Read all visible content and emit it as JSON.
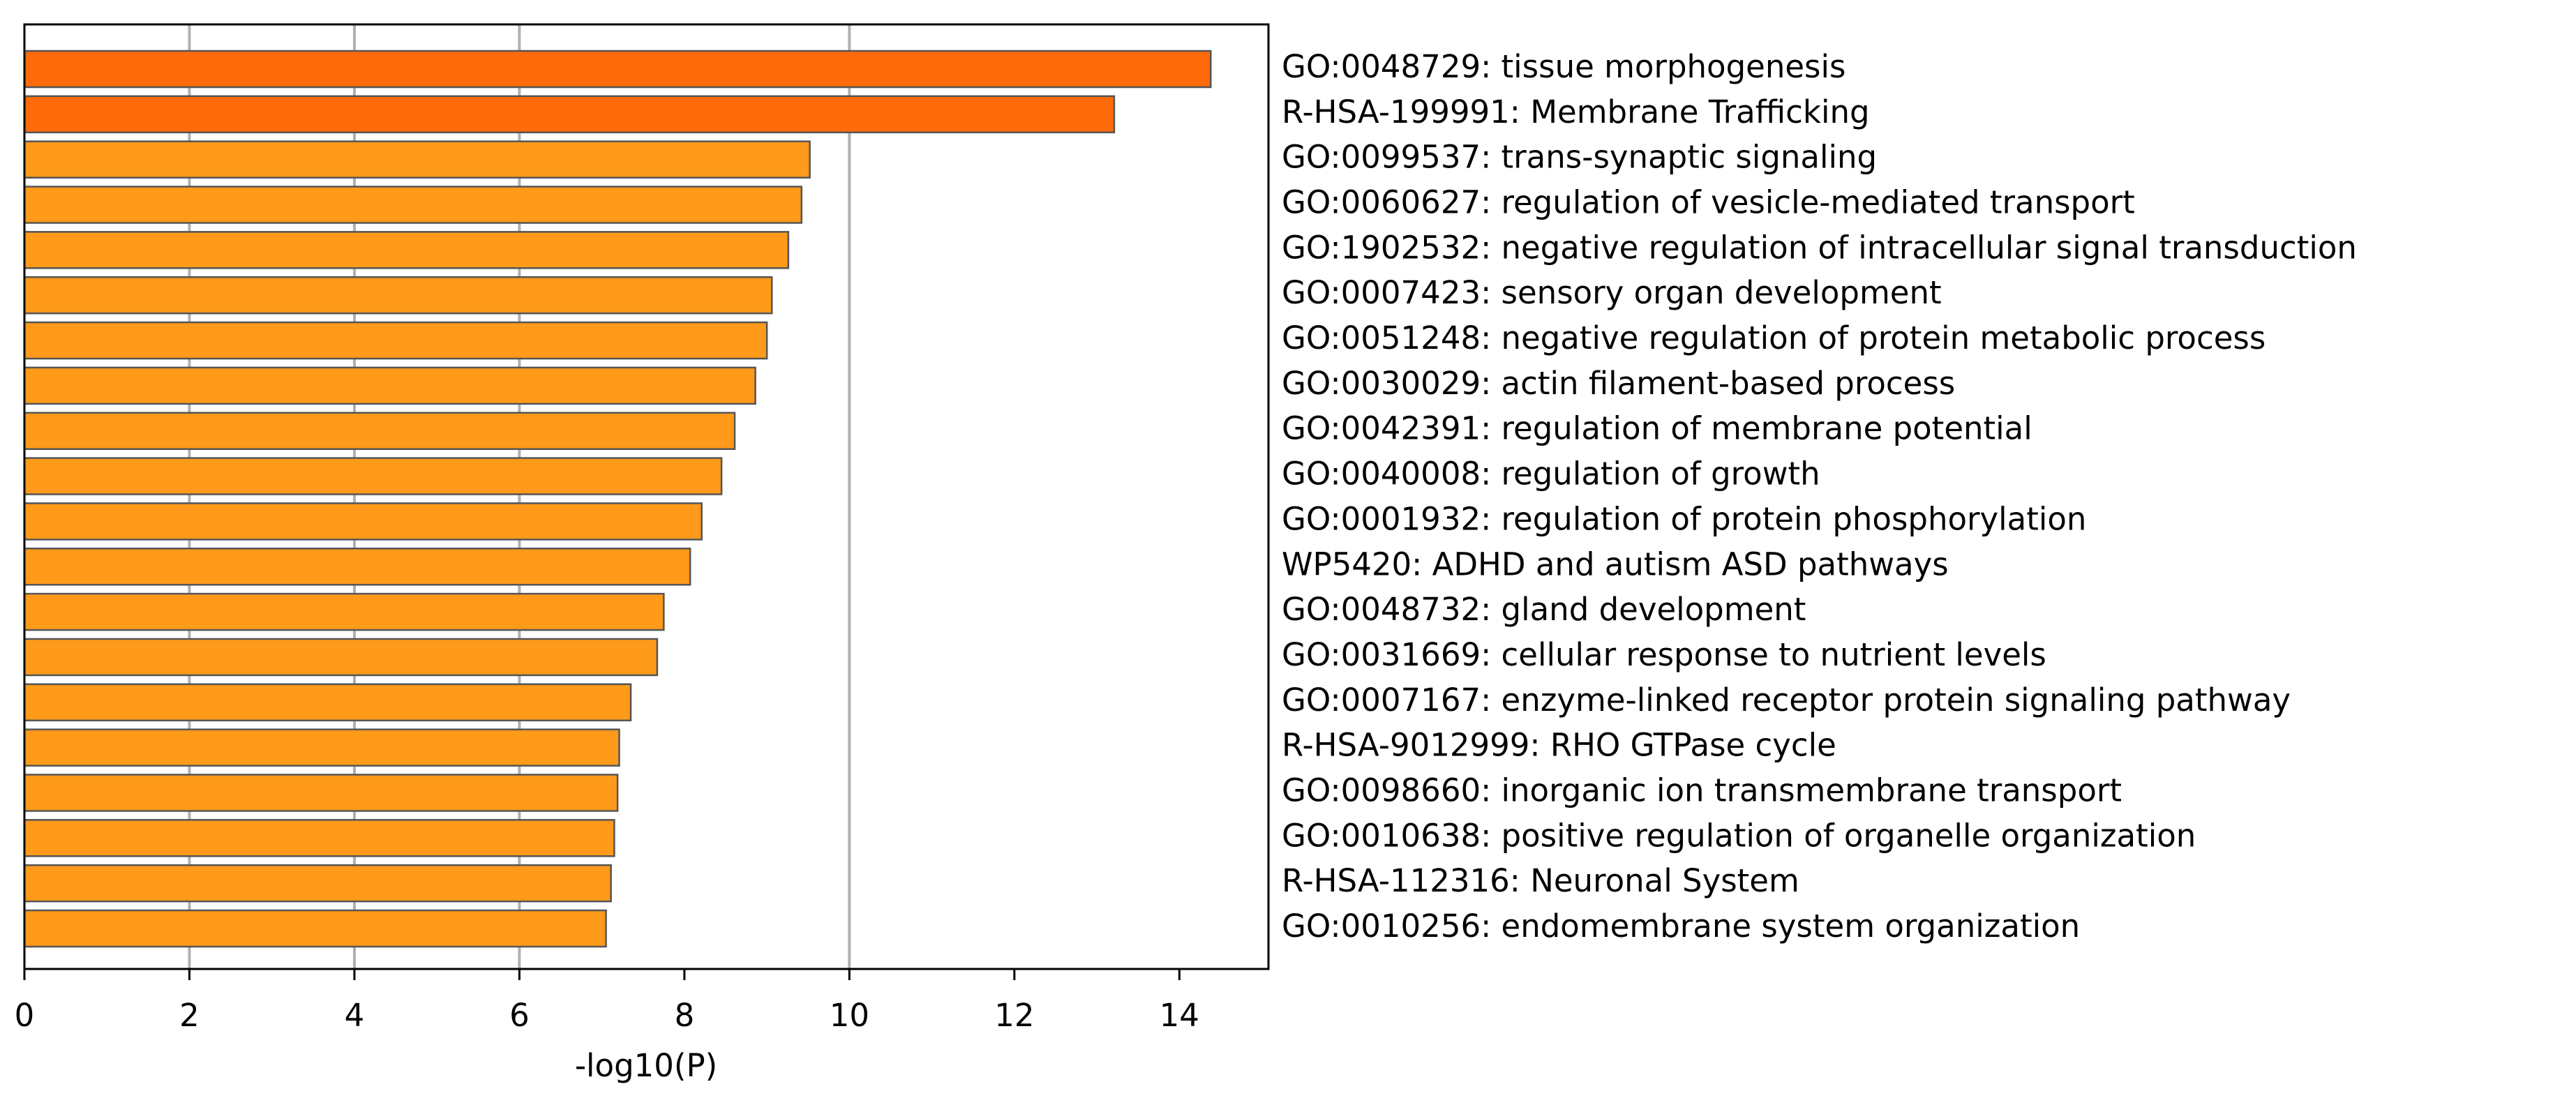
{
  "chart_data": {
    "type": "barh",
    "xlabel": "-log10(P)",
    "categories": [
      "GO:0048729: tissue morphogenesis",
      "R-HSA-199991: Membrane Trafficking",
      "GO:0099537: trans-synaptic signaling",
      "GO:0060627: regulation of vesicle-mediated transport",
      "GO:1902532: negative regulation of intracellular signal transduction",
      "GO:0007423: sensory organ development",
      "GO:0051248: negative regulation of protein metabolic process",
      "GO:0030029: actin filament-based process",
      "GO:0042391: regulation of membrane potential",
      "GO:0040008: regulation of growth",
      "GO:0001932: regulation of protein phosphorylation",
      "WP5420: ADHD and autism ASD pathways",
      "GO:0048732: gland development",
      "GO:0031669: cellular response to nutrient levels",
      "GO:0007167: enzyme-linked receptor protein signaling pathway",
      "R-HSA-9012999: RHO GTPase cycle",
      "GO:0098660: inorganic ion transmembrane transport",
      "GO:0010638: positive regulation of organelle organization",
      "R-HSA-112316: Neuronal System",
      "GO:0010256: endomembrane system organization"
    ],
    "values": [
      14.38,
      13.21,
      9.52,
      9.42,
      9.26,
      9.06,
      9.0,
      8.86,
      8.61,
      8.45,
      8.21,
      8.07,
      7.75,
      7.67,
      7.35,
      7.21,
      7.19,
      7.15,
      7.11,
      7.05
    ],
    "colors": [
      "#ff6a0a",
      "#ff6a0a",
      "#ff9a1a",
      "#ff9a1a",
      "#ff9a1a",
      "#ff9a1a",
      "#ff9a1a",
      "#ff9a1a",
      "#ff9a1a",
      "#ff9a1a",
      "#ff9a1a",
      "#ff9a1a",
      "#ff9a1a",
      "#ff9a1a",
      "#ff9a1a",
      "#ff9a1a",
      "#ff9a1a",
      "#ff9a1a",
      "#ff9a1a",
      "#ff9a1a"
    ],
    "edgecolor": "#555555",
    "xlim": [
      0,
      15.08
    ],
    "xticks": [
      0,
      2,
      4,
      6,
      8,
      10,
      12,
      14
    ],
    "grid_lines": [
      2,
      4,
      6,
      10
    ]
  }
}
